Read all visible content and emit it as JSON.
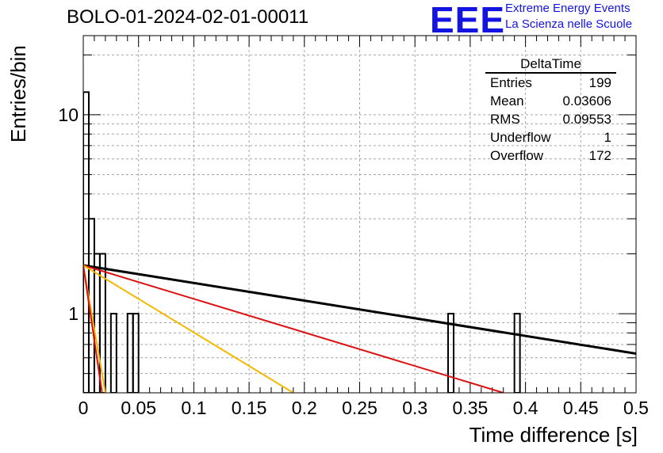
{
  "header": {
    "run_title": "BOLO-01-2024-02-01-00011",
    "logo": "EEE",
    "logo_line1": "Extreme Energy Events",
    "logo_line2": "La Scienza nelle Scuole"
  },
  "stats": {
    "title": "DeltaTime",
    "rows": [
      {
        "label": "Entries",
        "value": "199"
      },
      {
        "label": "Mean",
        "value": "0.03606"
      },
      {
        "label": "RMS",
        "value": "0.09553"
      },
      {
        "label": "Underflow",
        "value": "1"
      },
      {
        "label": "Overflow",
        "value": "172"
      }
    ]
  },
  "chart_data": {
    "type": "bar",
    "xlabel": "Time difference [s]",
    "ylabel": "Entries/bin",
    "xlim": [
      0,
      0.5
    ],
    "ylim": [
      0.4,
      25
    ],
    "log_y": true,
    "grid": true,
    "x_ticks": [
      "0",
      "0.05",
      "0.1",
      "0.15",
      "0.2",
      "0.25",
      "0.3",
      "0.35",
      "0.4",
      "0.45",
      "0.5"
    ],
    "y_ticks": [
      "1",
      "10"
    ],
    "bin_width": 0.005,
    "histogram": [
      {
        "x0": 0.0,
        "x1": 0.005,
        "count": 13
      },
      {
        "x0": 0.005,
        "x1": 0.01,
        "count": 3
      },
      {
        "x0": 0.01,
        "x1": 0.015,
        "count": 2
      },
      {
        "x0": 0.015,
        "x1": 0.02,
        "count": 2
      },
      {
        "x0": 0.025,
        "x1": 0.03,
        "count": 1
      },
      {
        "x0": 0.04,
        "x1": 0.045,
        "count": 1
      },
      {
        "x0": 0.045,
        "x1": 0.05,
        "count": 1
      },
      {
        "x0": 0.33,
        "x1": 0.335,
        "count": 1
      },
      {
        "x0": 0.39,
        "x1": 0.395,
        "count": 1
      }
    ],
    "curves": [
      {
        "color": "#000000",
        "points": [
          [
            0.0,
            1.75
          ],
          [
            0.5,
            0.63
          ]
        ]
      },
      {
        "color": "#dd1111",
        "points": [
          [
            0.0,
            1.75
          ],
          [
            0.38,
            0.4
          ]
        ]
      },
      {
        "color": "#f5b800",
        "points": [
          [
            0.0,
            1.75
          ],
          [
            0.19,
            0.4
          ]
        ]
      },
      {
        "color": "#f5b800",
        "points": [
          [
            0.0,
            1.75
          ],
          [
            0.02,
            0.4
          ]
        ]
      },
      {
        "color": "#dd1111",
        "points": [
          [
            0.0,
            1.75
          ],
          [
            0.017,
            0.4
          ]
        ]
      }
    ]
  }
}
